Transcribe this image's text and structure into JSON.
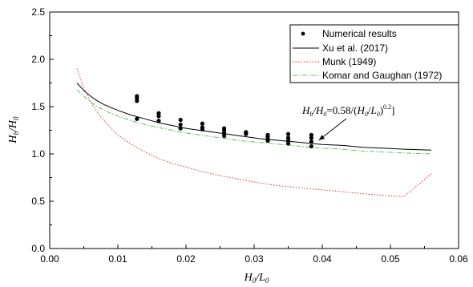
{
  "chart_data": {
    "type": "scatter",
    "xlabel": {
      "base": "H",
      "sub": "0",
      "slash": "/",
      "base2": "L",
      "sub2": "0"
    },
    "ylabel": {
      "base": "H",
      "sub": "b",
      "slash": "/",
      "base2": "H",
      "sub2": "0"
    },
    "xlim": [
      0.0,
      0.06
    ],
    "ylim": [
      0.0,
      2.5
    ],
    "xticks": [
      0.0,
      0.01,
      0.02,
      0.03,
      0.04,
      0.05,
      0.06
    ],
    "xtick_labels": [
      "0.00",
      "0.01",
      "0.02",
      "0.03",
      "0.04",
      "0.05",
      "0.06"
    ],
    "yticks": [
      0.0,
      0.5,
      1.0,
      1.5,
      2.0,
      2.5
    ],
    "ytick_labels": [
      "0.0",
      "0.5",
      "1.0",
      "1.5",
      "2.0",
      "2.5"
    ],
    "grid": false,
    "legend_position": "top-right",
    "series": [
      {
        "name": "Numerical results",
        "kind": "points",
        "color": "#000000",
        "points": [
          [
            0.0128,
            1.37
          ],
          [
            0.0128,
            1.56
          ],
          [
            0.0128,
            1.59
          ],
          [
            0.0128,
            1.61
          ],
          [
            0.016,
            1.35
          ],
          [
            0.016,
            1.4
          ],
          [
            0.016,
            1.43
          ],
          [
            0.0192,
            1.27
          ],
          [
            0.0192,
            1.31
          ],
          [
            0.0192,
            1.36
          ],
          [
            0.0224,
            1.26
          ],
          [
            0.0224,
            1.28
          ],
          [
            0.0224,
            1.32
          ],
          [
            0.0256,
            1.19
          ],
          [
            0.0256,
            1.22
          ],
          [
            0.0256,
            1.25
          ],
          [
            0.0256,
            1.27
          ],
          [
            0.0288,
            1.21
          ],
          [
            0.0288,
            1.22
          ],
          [
            0.0288,
            1.23
          ],
          [
            0.032,
            1.14
          ],
          [
            0.032,
            1.16
          ],
          [
            0.032,
            1.18
          ],
          [
            0.032,
            1.2
          ],
          [
            0.035,
            1.11
          ],
          [
            0.035,
            1.14
          ],
          [
            0.035,
            1.17
          ],
          [
            0.035,
            1.21
          ],
          [
            0.0384,
            1.08
          ],
          [
            0.0384,
            1.13
          ],
          [
            0.0384,
            1.17
          ],
          [
            0.0384,
            1.2
          ]
        ]
      },
      {
        "name": "Xu et al. (2017)",
        "kind": "line",
        "style": "solid",
        "color": "#000000",
        "x": [
          0.004,
          0.005,
          0.006,
          0.007,
          0.008,
          0.009,
          0.01,
          0.012,
          0.014,
          0.016,
          0.018,
          0.02,
          0.022,
          0.025,
          0.028,
          0.031,
          0.034,
          0.037,
          0.04,
          0.043,
          0.046,
          0.049,
          0.052,
          0.056
        ],
        "y": [
          1.75,
          1.67,
          1.61,
          1.56,
          1.52,
          1.49,
          1.46,
          1.41,
          1.37,
          1.33,
          1.3,
          1.27,
          1.25,
          1.22,
          1.19,
          1.16,
          1.14,
          1.12,
          1.1,
          1.09,
          1.07,
          1.06,
          1.05,
          1.04
        ]
      },
      {
        "name": "Munk (1949)",
        "kind": "line",
        "style": "dotted",
        "color": "#e0303a",
        "x": [
          0.004,
          0.005,
          0.006,
          0.007,
          0.008,
          0.009,
          0.01,
          0.012,
          0.014,
          0.016,
          0.018,
          0.02,
          0.022,
          0.025,
          0.028,
          0.031,
          0.034,
          0.037,
          0.04,
          0.043,
          0.046,
          0.049,
          0.052,
          0.056
        ],
        "y": [
          1.9,
          1.7,
          1.55,
          1.44,
          1.35,
          1.27,
          1.2,
          1.1,
          1.02,
          0.95,
          0.9,
          0.86,
          0.82,
          0.77,
          0.73,
          0.69,
          0.66,
          0.64,
          0.62,
          0.6,
          0.58,
          0.56,
          0.55,
          0.79
        ]
      },
      {
        "name": "Komar and Gaughan (1972)",
        "kind": "line",
        "style": "dashdot",
        "color": "#5cc35c",
        "x": [
          0.004,
          0.005,
          0.006,
          0.007,
          0.008,
          0.009,
          0.01,
          0.012,
          0.014,
          0.016,
          0.018,
          0.02,
          0.022,
          0.025,
          0.028,
          0.031,
          0.034,
          0.037,
          0.04,
          0.043,
          0.046,
          0.049,
          0.052,
          0.056
        ],
        "y": [
          1.68,
          1.61,
          1.55,
          1.5,
          1.46,
          1.43,
          1.4,
          1.35,
          1.31,
          1.28,
          1.25,
          1.22,
          1.2,
          1.17,
          1.14,
          1.12,
          1.1,
          1.08,
          1.06,
          1.05,
          1.03,
          1.02,
          1.01,
          1.0
        ]
      }
    ],
    "annotation": {
      "text_parts": {
        "h": "H",
        "b": "b",
        "slash": "/",
        "h2": "H",
        "zero": "0",
        "eq": "=0.58/(",
        "h3": "H",
        "zero2": "0",
        "slash2": "/",
        "l": "L",
        "zero3": "0",
        "close": ")",
        "exp": "0.2",
        "bracket": "]"
      },
      "arrow_target": [
        0.0395,
        1.145
      ]
    }
  }
}
